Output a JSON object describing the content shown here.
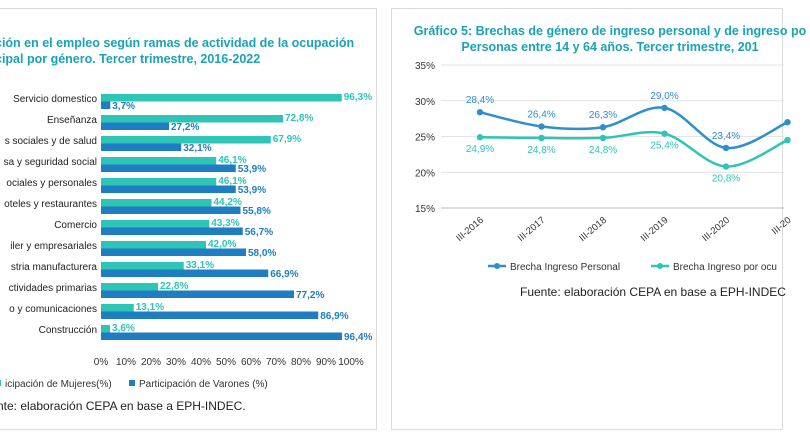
{
  "left_chart": {
    "title_lines": [
      "ción en el empleo según ramas de actividad de la ocupación",
      "cipal por género. Tercer trimestre, 2016-2022"
    ],
    "source": "nte: elaboración CEPA en base a EPH-INDEC."
  },
  "right_chart": {
    "title_lines": [
      "Gráfico 5: Brechas de género de ingreso personal y de ingreso po",
      "Personas entre 14 y 64 años. Tercer trimestre, 201"
    ],
    "source": "Fuente: elaboración CEPA en base a EPH-INDEC"
  },
  "colors": {
    "mujeres": "#2ec4b6",
    "varones": "#1f7dc2",
    "title": "#19a3b5",
    "brecha_personal": "#2e8fcf",
    "brecha_ocupacion": "#2ec4b6"
  },
  "chart_data": [
    {
      "type": "bar",
      "orientation": "horizontal",
      "categories": [
        "Servicio domestico",
        "Enseñanza",
        "s sociales y de salud",
        "sa y seguridad social",
        "ociales y personales",
        "oteles y restaurantes",
        "Comercio",
        "iler y empresariales",
        "stria manufacturera",
        "ctividades primarias",
        "o y comunicaciones",
        "Construcción"
      ],
      "series": [
        {
          "name": "icipación de Mujeres(%)",
          "values": [
            96.3,
            72.8,
            67.9,
            46.1,
            46.1,
            44.2,
            43.3,
            42.0,
            33.1,
            22.8,
            13.1,
            3.6
          ],
          "labels": [
            "96,3%",
            "72,8%",
            "67,9%",
            "46,1%",
            "46,1%",
            "44,2%",
            "43,3%",
            "42,0%",
            "33,1%",
            "22,8%",
            "13,1%",
            "3,6%"
          ]
        },
        {
          "name": "Participación de Varones (%)",
          "values": [
            3.7,
            27.2,
            32.1,
            53.9,
            53.9,
            55.8,
            56.7,
            58.0,
            66.9,
            77.2,
            86.9,
            96.4
          ],
          "labels": [
            "3,7%",
            "27,2%",
            "32,1%",
            "53,9%",
            "53,9%",
            "55,8%",
            "56,7%",
            "58,0%",
            "66,9%",
            "77,2%",
            "86,9%",
            "96,4%"
          ]
        }
      ],
      "xlim": [
        0,
        100
      ],
      "xticks": [
        "0%",
        "10%",
        "20%",
        "30%",
        "40%",
        "50%",
        "60%",
        "70%",
        "80%",
        "90%",
        "100%"
      ],
      "legend": "bottom",
      "grid": false
    },
    {
      "type": "line",
      "categories": [
        "III-2016",
        "III-2017",
        "III-2018",
        "III-2019",
        "III-2020",
        "III-20"
      ],
      "series": [
        {
          "name": "Brecha Ingreso Personal",
          "values": [
            28.4,
            26.4,
            26.3,
            29.0,
            23.4,
            27.0
          ],
          "labels": [
            "28,4%",
            "26,4%",
            "26,3%",
            "29,0%",
            "23,4%",
            ""
          ]
        },
        {
          "name": "Brecha Ingreso por ocu",
          "values": [
            24.9,
            24.8,
            24.8,
            25.4,
            20.8,
            24.5
          ],
          "labels": [
            "24,9%",
            "24,8%",
            "24,8%",
            "25,4%",
            "20,8%",
            ""
          ]
        }
      ],
      "ylim": [
        15,
        35
      ],
      "yticks": [
        "15%",
        "20%",
        "25%",
        "30%",
        "35%"
      ],
      "legend": "bottom",
      "grid": true
    }
  ]
}
